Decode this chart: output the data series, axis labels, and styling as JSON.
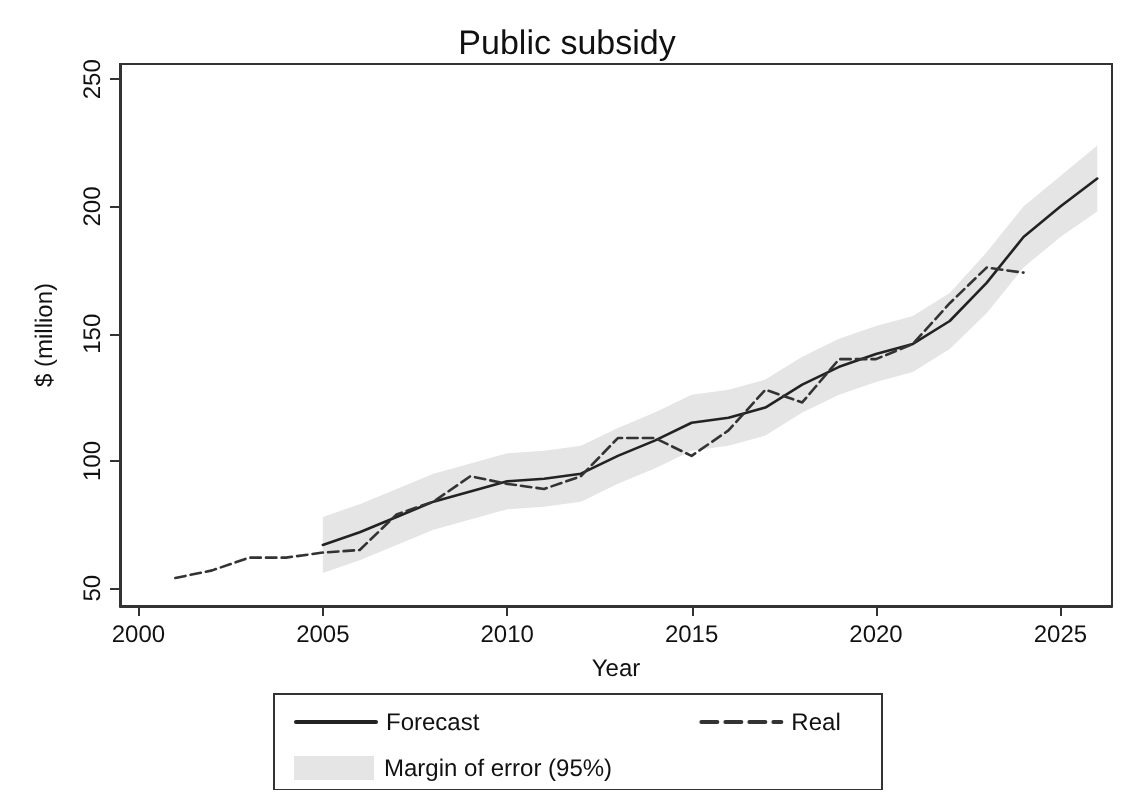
{
  "chart_data": {
    "type": "line",
    "title": "Public subsidy",
    "xlabel": "Year",
    "ylabel": "$ (million)",
    "xlim": [
      1999.5,
      2026.4
    ],
    "xticks": [
      2000,
      2005,
      2010,
      2015,
      2020,
      2025
    ],
    "ylim": [
      43,
      256
    ],
    "yticks": [
      50,
      100,
      150,
      200,
      250
    ],
    "grid": false,
    "legend": "bottom",
    "marker": "none",
    "annotations": [
      "Margin of error (95%)"
    ],
    "series": [
      {
        "name": "Forecast",
        "color": "#222222",
        "line_style": "solid",
        "x": [
          2005,
          2006,
          2007,
          2008,
          2009,
          2010,
          2011,
          2012,
          2013,
          2014,
          2015,
          2016,
          2017,
          2018,
          2019,
          2020,
          2021,
          2022,
          2023,
          2024,
          2025,
          2026
        ],
        "values": [
          67,
          72,
          78,
          84,
          88,
          92,
          93,
          95,
          102,
          108,
          115,
          117,
          121,
          130,
          137,
          142,
          146,
          155,
          170,
          188,
          200,
          211
        ],
        "lower": [
          56,
          61,
          67,
          73,
          77,
          81,
          82,
          84,
          91,
          97,
          104,
          106,
          110,
          119,
          126,
          131,
          135,
          144,
          158,
          176,
          188,
          198
        ],
        "upper": [
          78,
          83,
          89,
          95,
          99,
          103,
          104,
          106,
          113,
          119,
          126,
          128,
          132,
          141,
          148,
          153,
          157,
          166,
          182,
          200,
          212,
          224
        ]
      },
      {
        "name": "Real",
        "color": "#333333",
        "line_style": "dashed",
        "x": [
          2001,
          2002,
          2003,
          2004,
          2005,
          2006,
          2007,
          2008,
          2009,
          2010,
          2011,
          2012,
          2013,
          2014,
          2015,
          2016,
          2017,
          2018,
          2019,
          2020,
          2021,
          2022,
          2023,
          2024
        ],
        "values": [
          54,
          57,
          62,
          62,
          64,
          65,
          79,
          84,
          94,
          91,
          89,
          94,
          109,
          109,
          102,
          112,
          128,
          123,
          140,
          140,
          146,
          162,
          176,
          174
        ]
      }
    ]
  }
}
